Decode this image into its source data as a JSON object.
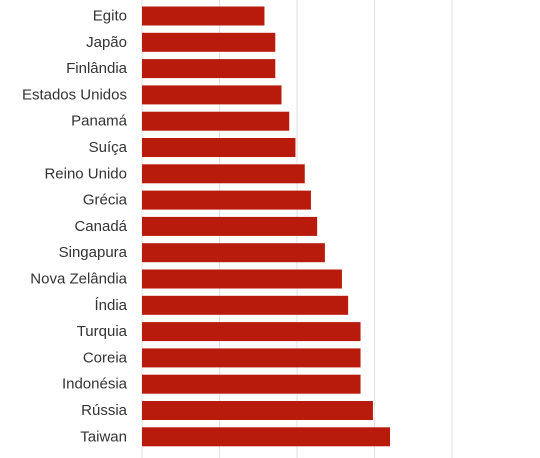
{
  "colors": {
    "bar": "#b81a0c",
    "grid": "#e2e2e2",
    "label": "#333333"
  },
  "chart_data": {
    "type": "bar",
    "orientation": "horizontal",
    "title": "",
    "xlabel": "",
    "ylabel": "",
    "xlim": [
      0,
      100
    ],
    "grid": true,
    "categories": [
      "Egito",
      "Japão",
      "Finlândia",
      "Estados Unidos",
      "Panamá",
      "Suíça",
      "Reino Unido",
      "Grécia",
      "Canadá",
      "Singapura",
      "Nova Zelândia",
      "Índia",
      "Turquia",
      "Coreia",
      "Indonésia",
      "Rússia",
      "Taiwan"
    ],
    "values": [
      39.5,
      43,
      43,
      45,
      47.5,
      49.5,
      52.5,
      54.5,
      56.5,
      59,
      64.5,
      66.5,
      70.5,
      70.5,
      70.5,
      74.5,
      80
    ]
  }
}
